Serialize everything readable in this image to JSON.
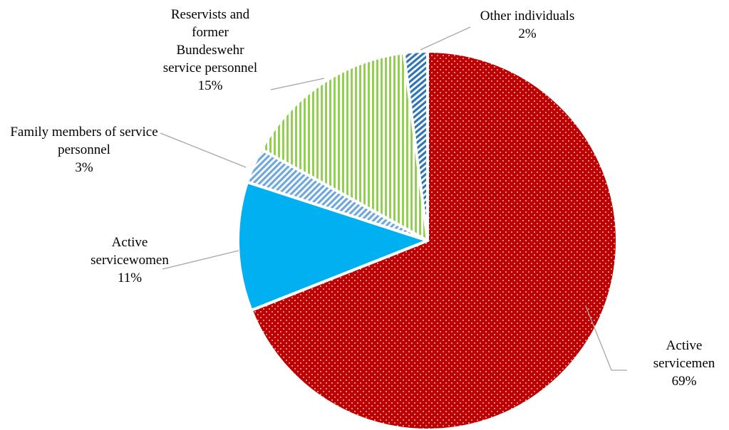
{
  "chart_data": {
    "type": "pie",
    "categories": [
      "Active servicemen",
      "Active servicewomen",
      "Family members of service personnel",
      "Reservists and former Bundeswehr service personnel",
      "Other individuals"
    ],
    "values": [
      69,
      11,
      3,
      15,
      2
    ],
    "value_labels": [
      "69%",
      "11%",
      "3%",
      "15%",
      "2%"
    ],
    "colors": [
      "#c00000",
      "#00b0f0",
      "#6fa8dc",
      "#92d050",
      "#2e75b6"
    ]
  }
}
